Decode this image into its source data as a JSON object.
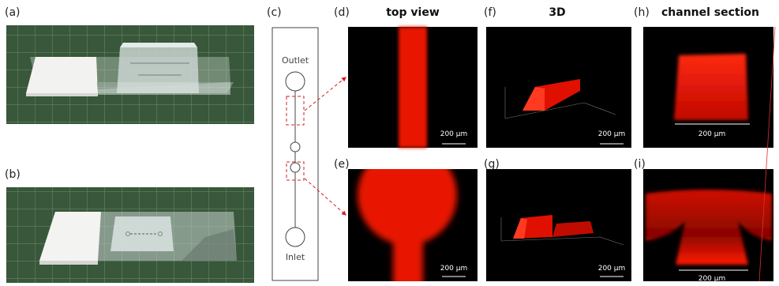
{
  "panel_labels": [
    "(a)",
    "(b)",
    "(c)",
    "(d)",
    "(e)",
    "(f)",
    "(g)",
    "(h)",
    "(i)"
  ],
  "column_titles": [
    "top view",
    "3D",
    "channel section"
  ],
  "diagram": {
    "outlet": "Outlet",
    "inlet": "Inlet"
  },
  "scale_bars": [
    "200 μm",
    "200 μm",
    "200 μm",
    "200 μm",
    "200 μm",
    "200 μm"
  ]
}
